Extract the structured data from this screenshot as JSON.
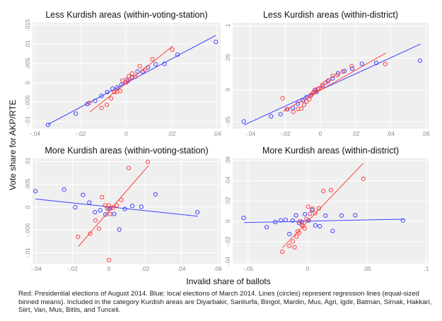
{
  "figure": {
    "ylabel": "Vote share for AKP/RTE",
    "xlabel": "Invalid share of ballots",
    "notes": "Red: Presidential elections of August 2014. Blue: local elections of March 2014. Lines (circles) represent regression lines (equal-sized binned means). Included in the category Kurdish areas are Diyarbakir, Sanliurfa, Bingol, Mardin, Mus, Agri, Igdir, Batman, Sirnak, Hakkari, Siirt, Van, Mus, Bitlis, and Tunceli."
  },
  "colors": {
    "red": "#ff4040",
    "blue": "#4040ff",
    "plot_bg": "#efefef",
    "grid": "#ffffff"
  },
  "chart_data": [
    {
      "type": "scatter",
      "title": "Less Kurdish areas (within-voting-station)",
      "xlim": [
        -0.0412,
        0.0416
      ],
      "ylim": [
        -0.0119,
        0.0156
      ],
      "grid": true,
      "xticks": [
        -0.04,
        -0.02,
        0,
        0.02,
        0.04
      ],
      "xticklabels": [
        "-.04",
        "-.02",
        "0",
        ".02",
        ".04"
      ],
      "yticks": [
        -0.01,
        -0.005,
        0,
        0.005,
        0.01,
        0.015
      ],
      "yticklabels": [
        "-.01",
        "-.005",
        "0",
        ".005",
        ".01",
        ".015"
      ],
      "series": [
        {
          "color": "blue",
          "points": [
            [
              -0.0344,
              -0.0109
            ],
            [
              -0.0222,
              -0.008
            ],
            [
              -0.0171,
              -0.0055
            ],
            [
              -0.0137,
              -0.0047
            ],
            [
              -0.0109,
              -0.0034
            ],
            [
              -0.0083,
              -0.0024
            ],
            [
              -0.006,
              -0.0015
            ],
            [
              -0.004,
              -0.0012
            ],
            [
              -0.0021,
              -0.0005
            ],
            [
              -0.0002,
              0.0001
            ],
            [
              0.0008,
              0.0005
            ],
            [
              0.0027,
              0.0013
            ],
            [
              0.005,
              0.0029
            ],
            [
              0.0073,
              0.0029
            ],
            [
              0.0096,
              0.004
            ],
            [
              0.013,
              0.0048
            ],
            [
              0.0169,
              0.0049
            ],
            [
              0.0226,
              0.0073
            ],
            [
              0.0395,
              0.0106
            ]
          ],
          "fit": [
            [
              -0.0344,
              -0.0108
            ],
            [
              0.0395,
              0.0123
            ]
          ]
        },
        {
          "color": "red",
          "points": [
            [
              -0.0162,
              -0.0052
            ],
            [
              -0.0108,
              -0.0065
            ],
            [
              -0.0085,
              -0.0057
            ],
            [
              -0.0067,
              -0.0041
            ],
            [
              -0.0052,
              -0.0024
            ],
            [
              -0.0041,
              -0.0023
            ],
            [
              -0.0026,
              -0.0021
            ],
            [
              -0.0016,
              0.0006
            ],
            [
              0.0,
              0.0001
            ],
            [
              0.0003,
              0.0008
            ],
            [
              0.0011,
              0.0017
            ],
            [
              0.0026,
              0.0024
            ],
            [
              0.0041,
              0.0016
            ],
            [
              0.006,
              0.0043
            ],
            [
              0.0083,
              0.0034
            ],
            [
              0.0115,
              0.0061
            ],
            [
              0.0203,
              0.0086
            ]
          ],
          "fit": [
            [
              -0.016,
              -0.0076
            ],
            [
              0.0205,
              0.0095
            ]
          ]
        }
      ]
    },
    {
      "type": "scatter",
      "title": "Less Kurdish areas (within-district)",
      "xlim": [
        -0.05,
        0.0617
      ],
      "ylim": [
        -0.061,
        0.1056
      ],
      "grid": true,
      "xticks": [
        -0.04,
        -0.02,
        0,
        0.02,
        0.04,
        0.06
      ],
      "xticklabels": [
        "-.04",
        "-.02",
        "0",
        ".02",
        ".04",
        ".06"
      ],
      "yticks": [
        -0.05,
        0,
        0.05,
        0.1
      ],
      "yticklabels": [
        "-.05",
        "0",
        ".05",
        ".1"
      ],
      "series": [
        {
          "color": "blue",
          "points": [
            [
              -0.0437,
              -0.0497
            ],
            [
              -0.0281,
              -0.0416
            ],
            [
              -0.0227,
              -0.0383
            ],
            [
              -0.0188,
              -0.0305
            ],
            [
              -0.0157,
              -0.0283
            ],
            [
              -0.0129,
              -0.0217
            ],
            [
              -0.0101,
              -0.0166
            ],
            [
              -0.0079,
              -0.0114
            ],
            [
              -0.0055,
              -0.0085
            ],
            [
              -0.0031,
              0.0
            ],
            [
              -0.0022,
              -0.0033
            ],
            [
              0.0013,
              0.0059
            ],
            [
              0.0042,
              0.0132
            ],
            [
              0.007,
              0.018
            ],
            [
              0.0101,
              0.0261
            ],
            [
              0.0137,
              0.0294
            ],
            [
              0.0182,
              0.0331
            ],
            [
              0.0237,
              0.0408
            ],
            [
              0.0319,
              0.0423
            ],
            [
              0.0568,
              0.046
            ]
          ],
          "fit": [
            [
              -0.0435,
              -0.0552
            ],
            [
              0.0572,
              0.0721
            ]
          ]
        },
        {
          "color": "red",
          "points": [
            [
              -0.0215,
              -0.0132
            ],
            [
              -0.0191,
              -0.0305
            ],
            [
              -0.0155,
              -0.0346
            ],
            [
              -0.0128,
              -0.0302
            ],
            [
              -0.0108,
              -0.0294
            ],
            [
              -0.0093,
              -0.0236
            ],
            [
              -0.0078,
              -0.0184
            ],
            [
              -0.0063,
              -0.0147
            ],
            [
              -0.0054,
              -0.0092
            ],
            [
              -0.0044,
              -0.0055
            ],
            [
              -0.0038,
              -0.0033
            ],
            [
              -0.0027,
              -0.0018
            ],
            [
              -0.0015,
              0.0011
            ],
            [
              -0.0008,
              0.0022
            ],
            [
              0.0003,
              0.0033
            ],
            [
              0.0013,
              0.0085
            ],
            [
              0.003,
              0.0114
            ],
            [
              0.0048,
              0.0151
            ],
            [
              0.007,
              0.0221
            ],
            [
              0.0097,
              0.0232
            ],
            [
              0.0128,
              0.0287
            ],
            [
              0.0179,
              0.0372
            ],
            [
              0.037,
              0.0405
            ]
          ],
          "fit": [
            [
              -0.0213,
              -0.0339
            ],
            [
              0.0373,
              0.0578
            ]
          ]
        }
      ]
    },
    {
      "type": "scatter",
      "title": "More Kurdish areas (within-voting-station)",
      "xlim": [
        -0.0421,
        0.0616
      ],
      "ylim": [
        -0.0124,
        0.0107
      ],
      "grid": true,
      "xticks": [
        -0.04,
        -0.02,
        0,
        0.02,
        0.04,
        0.06
      ],
      "xticklabels": [
        "-.04",
        "-.02",
        "0",
        ".02",
        ".04",
        ".06"
      ],
      "yticks": [
        -0.01,
        -0.005,
        0,
        0.005,
        0.01
      ],
      "yticklabels": [
        "-.01",
        "-.005",
        "0",
        ".005",
        ".01"
      ],
      "series": [
        {
          "color": "blue",
          "points": [
            [
              -0.0405,
              0.0035
            ],
            [
              -0.0247,
              0.0039
            ],
            [
              -0.0143,
              0.0027
            ],
            [
              -0.0108,
              0.001
            ],
            [
              -0.0186,
              0.0
            ],
            [
              -0.0077,
              -0.0011
            ],
            [
              -0.0048,
              -0.0007
            ],
            [
              -0.0019,
              -0.0016
            ],
            [
              0.0,
              -0.0004
            ],
            [
              0.0008,
              -0.0002
            ],
            [
              0.0029,
              -0.0015
            ],
            [
              0.0057,
              -0.0049
            ],
            [
              0.0088,
              -0.0004
            ],
            [
              0.0129,
              0.0003
            ],
            [
              0.0179,
              0.0001
            ],
            [
              0.0257,
              0.0028
            ],
            [
              0.0488,
              -0.0011
            ]
          ],
          "fit": [
            [
              -0.0405,
              0.0018
            ],
            [
              0.0491,
              -0.002
            ]
          ]
        },
        {
          "color": "red",
          "points": [
            [
              -0.017,
              -0.0065
            ],
            [
              -0.0103,
              -0.0058
            ],
            [
              -0.0074,
              -0.0029
            ],
            [
              -0.0055,
              -0.0047
            ],
            [
              -0.0038,
              0.0022
            ],
            [
              -0.0021,
              0.0004
            ],
            [
              -0.0008,
              -0.0003
            ],
            [
              0.0,
              0.0004
            ],
            [
              0.0006,
              -0.0015
            ],
            [
              0.0023,
              -0.0001
            ],
            [
              0.0043,
              0.0004
            ],
            [
              0.0068,
              0.0016
            ],
            [
              0.0109,
              0.0086
            ],
            [
              0.0214,
              0.0099
            ],
            [
              0.0,
              -0.0116
            ]
          ],
          "fit": [
            [
              -0.0168,
              -0.0086
            ],
            [
              0.0218,
              0.0091
            ]
          ]
        }
      ]
    },
    {
      "type": "scatter",
      "title": "More Kurdish areas (within-district)",
      "xlim": [
        -0.063,
        0.1018
      ],
      "ylim": [
        -0.0418,
        0.062
      ],
      "grid": true,
      "xticks": [
        -0.05,
        0,
        0.05,
        0.1
      ],
      "xticklabels": [
        "-.05",
        "0",
        ".05",
        ".1"
      ],
      "yticks": [
        -0.04,
        -0.02,
        0,
        0.02,
        0.04,
        0.06
      ],
      "yticklabels": [
        "-.04",
        "-.02",
        "0",
        ".02",
        ".04",
        ".06"
      ],
      "series": [
        {
          "color": "blue",
          "points": [
            [
              -0.0538,
              0.0033
            ],
            [
              -0.0344,
              -0.0058
            ],
            [
              -0.0272,
              -0.0007
            ],
            [
              -0.0225,
              0.0009
            ],
            [
              -0.0185,
              0.0014
            ],
            [
              -0.0125,
              0.0007
            ],
            [
              -0.0097,
              0.0058
            ],
            [
              -0.0153,
              -0.0126
            ],
            [
              -0.0072,
              -0.0016
            ],
            [
              -0.0048,
              -0.0007
            ],
            [
              -0.0022,
              0.007
            ],
            [
              0.0008,
              0.0007
            ],
            [
              0.0038,
              0.0112
            ],
            [
              0.0066,
              -0.004
            ],
            [
              0.0103,
              -0.0049
            ],
            [
              0.0151,
              0.0056
            ],
            [
              0.0211,
              -0.0095
            ],
            [
              0.0286,
              0.0056
            ],
            [
              0.0401,
              0.006
            ],
            [
              0.0803,
              0.0009
            ]
          ],
          "fit": [
            [
              -0.0535,
              -0.0012
            ],
            [
              0.0807,
              0.0021
            ]
          ]
        },
        {
          "color": "red",
          "points": [
            [
              -0.0213,
              -0.03
            ],
            [
              -0.0153,
              -0.0242
            ],
            [
              -0.0125,
              -0.0198
            ],
            [
              -0.0109,
              -0.0256
            ],
            [
              -0.0093,
              -0.0151
            ],
            [
              -0.0083,
              -0.0098
            ],
            [
              -0.007,
              -0.0114
            ],
            [
              -0.0064,
              0.0
            ],
            [
              -0.0048,
              -0.0035
            ],
            [
              -0.0038,
              -0.0047
            ],
            [
              -0.0024,
              -0.007
            ],
            [
              -0.001,
              0.0023
            ],
            [
              0.0006,
              0.0144
            ],
            [
              0.002,
              0.0074
            ],
            [
              0.0042,
              0.0123
            ],
            [
              0.0064,
              0.0081
            ],
            [
              0.0095,
              0.0128
            ],
            [
              0.0133,
              0.0298
            ],
            [
              0.0197,
              0.0307
            ],
            [
              0.0469,
              0.0419
            ]
          ],
          "fit": [
            [
              -0.0211,
              -0.0261
            ],
            [
              0.0471,
              0.0575
            ]
          ]
        }
      ]
    }
  ]
}
